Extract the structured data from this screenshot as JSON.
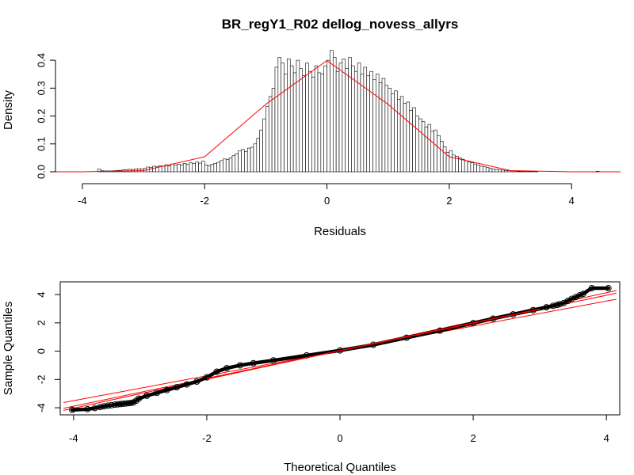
{
  "figure": {
    "title": "BR_regY1_R02 dellog_novess_allyrs"
  },
  "chart_data": [
    {
      "type": "bar",
      "subtype": "histogram-with-density-curve",
      "xlabel": "Residuals",
      "ylabel": "Density",
      "xlim": [
        -4.4,
        4.8
      ],
      "ylim": [
        0,
        0.44
      ],
      "x_ticks": [
        -4,
        -2,
        0,
        2,
        4
      ],
      "y_ticks": [
        0.0,
        0.1,
        0.2,
        0.3,
        0.4
      ],
      "y_tick_labels": [
        "0.0",
        "0.1",
        "0.2",
        "0.3",
        "0.4"
      ],
      "bin_width": 0.05,
      "bar_color": "#ffffff",
      "bar_edge_color": "#000000",
      "curve_color": "#ff0000",
      "curve": {
        "x": [
          -4.5,
          -4.0,
          -3.0,
          -2.0,
          -1.0,
          0.0,
          1.0,
          2.0,
          3.0,
          4.0,
          4.8
        ],
        "y": [
          0.0,
          0.0001,
          0.0044,
          0.054,
          0.242,
          0.399,
          0.242,
          0.054,
          0.0044,
          0.0001,
          0.0
        ]
      },
      "bins": [
        [
          -3.75,
          0.01
        ],
        [
          -3.7,
          0.004
        ],
        [
          -3.65,
          0.003
        ],
        [
          -3.6,
          0.003
        ],
        [
          -3.55,
          0.003
        ],
        [
          -3.5,
          0.004
        ],
        [
          -3.45,
          0.005
        ],
        [
          -3.4,
          0.005
        ],
        [
          -3.35,
          0.007
        ],
        [
          -3.3,
          0.008
        ],
        [
          -3.25,
          0.009
        ],
        [
          -3.2,
          0.008
        ],
        [
          -3.15,
          0.01
        ],
        [
          -3.1,
          0.011
        ],
        [
          -3.05,
          0.01
        ],
        [
          -3.0,
          0.012
        ],
        [
          -2.95,
          0.017
        ],
        [
          -2.9,
          0.015
        ],
        [
          -2.85,
          0.02
        ],
        [
          -2.8,
          0.018
        ],
        [
          -2.75,
          0.022
        ],
        [
          -2.7,
          0.02
        ],
        [
          -2.65,
          0.025
        ],
        [
          -2.6,
          0.021
        ],
        [
          -2.55,
          0.028
        ],
        [
          -2.5,
          0.024
        ],
        [
          -2.45,
          0.027
        ],
        [
          -2.4,
          0.025
        ],
        [
          -2.35,
          0.03
        ],
        [
          -2.3,
          0.027
        ],
        [
          -2.25,
          0.032
        ],
        [
          -2.2,
          0.03
        ],
        [
          -2.15,
          0.035
        ],
        [
          -2.1,
          0.031
        ],
        [
          -2.05,
          0.038
        ],
        [
          -2.0,
          0.025
        ],
        [
          -1.95,
          0.022
        ],
        [
          -1.9,
          0.027
        ],
        [
          -1.85,
          0.03
        ],
        [
          -1.8,
          0.034
        ],
        [
          -1.75,
          0.04
        ],
        [
          -1.7,
          0.046
        ],
        [
          -1.65,
          0.044
        ],
        [
          -1.6,
          0.05
        ],
        [
          -1.55,
          0.058
        ],
        [
          -1.5,
          0.065
        ],
        [
          -1.45,
          0.075
        ],
        [
          -1.4,
          0.08
        ],
        [
          -1.35,
          0.072
        ],
        [
          -1.3,
          0.085
        ],
        [
          -1.25,
          0.088
        ],
        [
          -1.2,
          0.1
        ],
        [
          -1.15,
          0.12
        ],
        [
          -1.1,
          0.15
        ],
        [
          -1.05,
          0.19
        ],
        [
          -1.0,
          0.235
        ],
        [
          -0.95,
          0.27
        ],
        [
          -0.9,
          0.3
        ],
        [
          -0.85,
          0.375
        ],
        [
          -0.8,
          0.41
        ],
        [
          -0.75,
          0.39
        ],
        [
          -0.7,
          0.35
        ],
        [
          -0.65,
          0.405
        ],
        [
          -0.6,
          0.38
        ],
        [
          -0.55,
          0.355
        ],
        [
          -0.5,
          0.4
        ],
        [
          -0.45,
          0.37
        ],
        [
          -0.4,
          0.345
        ],
        [
          -0.35,
          0.39
        ],
        [
          -0.3,
          0.36
        ],
        [
          -0.25,
          0.34
        ],
        [
          -0.2,
          0.38
        ],
        [
          -0.15,
          0.355
        ],
        [
          -0.1,
          0.35
        ],
        [
          -0.05,
          0.38
        ],
        [
          0.0,
          0.4
        ],
        [
          0.05,
          0.435
        ],
        [
          0.1,
          0.41
        ],
        [
          0.15,
          0.36
        ],
        [
          0.2,
          0.39
        ],
        [
          0.25,
          0.405
        ],
        [
          0.3,
          0.37
        ],
        [
          0.35,
          0.41
        ],
        [
          0.4,
          0.38
        ],
        [
          0.45,
          0.36
        ],
        [
          0.5,
          0.39
        ],
        [
          0.55,
          0.35
        ],
        [
          0.6,
          0.375
        ],
        [
          0.65,
          0.345
        ],
        [
          0.7,
          0.36
        ],
        [
          0.75,
          0.33
        ],
        [
          0.8,
          0.35
        ],
        [
          0.85,
          0.32
        ],
        [
          0.9,
          0.335
        ],
        [
          0.95,
          0.31
        ],
        [
          1.0,
          0.3
        ],
        [
          1.05,
          0.28
        ],
        [
          1.1,
          0.29
        ],
        [
          1.15,
          0.26
        ],
        [
          1.2,
          0.27
        ],
        [
          1.25,
          0.245
        ],
        [
          1.3,
          0.25
        ],
        [
          1.35,
          0.22
        ],
        [
          1.4,
          0.23
        ],
        [
          1.45,
          0.2
        ],
        [
          1.5,
          0.19
        ],
        [
          1.55,
          0.18
        ],
        [
          1.6,
          0.16
        ],
        [
          1.65,
          0.17
        ],
        [
          1.7,
          0.145
        ],
        [
          1.75,
          0.15
        ],
        [
          1.8,
          0.13
        ],
        [
          1.85,
          0.11
        ],
        [
          1.9,
          0.09
        ],
        [
          1.95,
          0.07
        ],
        [
          2.0,
          0.075
        ],
        [
          2.05,
          0.06
        ],
        [
          2.1,
          0.055
        ],
        [
          2.15,
          0.05
        ],
        [
          2.2,
          0.045
        ],
        [
          2.25,
          0.04
        ],
        [
          2.3,
          0.035
        ],
        [
          2.35,
          0.032
        ],
        [
          2.4,
          0.028
        ],
        [
          2.45,
          0.024
        ],
        [
          2.5,
          0.02
        ],
        [
          2.55,
          0.018
        ],
        [
          2.6,
          0.015
        ],
        [
          2.65,
          0.012
        ],
        [
          2.7,
          0.01
        ],
        [
          2.75,
          0.009
        ],
        [
          2.8,
          0.007
        ],
        [
          2.85,
          0.006
        ],
        [
          2.9,
          0.005
        ],
        [
          2.95,
          0.004
        ],
        [
          3.0,
          0.003
        ],
        [
          3.05,
          0.003
        ],
        [
          3.1,
          0.002
        ],
        [
          3.15,
          0.002
        ],
        [
          3.2,
          0.002
        ],
        [
          3.25,
          0.001
        ],
        [
          3.3,
          0.001
        ],
        [
          3.35,
          0.001
        ],
        [
          3.4,
          0.001
        ],
        [
          4.4,
          0.002
        ]
      ]
    },
    {
      "type": "scatter",
      "subtype": "normal-qq-plot",
      "xlabel": "Theoretical Quantiles",
      "ylabel": "Sample Quantiles",
      "xlim": [
        -4.2,
        4.2
      ],
      "ylim": [
        -4.5,
        4.9
      ],
      "x_ticks": [
        -4,
        -2,
        0,
        2,
        4
      ],
      "y_ticks": [
        -4,
        -2,
        0,
        2,
        4
      ],
      "point_color": "#000000",
      "line_color": "#ff0000",
      "reference_lines": [
        {
          "slope": 0.88,
          "intercept": 0.02
        },
        {
          "slope": 0.98,
          "intercept": 0.03
        },
        {
          "slope": 1.02,
          "intercept": 0.05
        }
      ],
      "points": {
        "x": [
          -4.02,
          -3.79,
          -3.68,
          -3.6,
          -3.54,
          -3.48,
          -3.43,
          -3.38,
          -3.34,
          -3.3,
          -3.26,
          -3.22,
          -3.18,
          -3.14,
          -3.1,
          -3.06,
          -3.02,
          -2.9,
          -2.75,
          -2.6,
          -2.45,
          -2.3,
          -2.15,
          -2.0,
          -1.85,
          -1.7,
          -1.5,
          -1.3,
          -1.0,
          -0.5,
          0.0,
          0.5,
          1.0,
          1.5,
          2.0,
          2.3,
          2.6,
          2.9,
          3.1,
          3.2,
          3.26,
          3.3,
          3.36,
          3.42,
          3.48,
          3.54,
          3.6,
          3.65,
          3.78,
          4.03
        ],
        "y": [
          -4.15,
          -4.1,
          -4.02,
          -3.95,
          -3.9,
          -3.85,
          -3.82,
          -3.78,
          -3.76,
          -3.74,
          -3.72,
          -3.7,
          -3.68,
          -3.66,
          -3.62,
          -3.5,
          -3.35,
          -3.15,
          -2.95,
          -2.75,
          -2.55,
          -2.35,
          -2.15,
          -1.85,
          -1.45,
          -1.2,
          -1.0,
          -0.85,
          -0.65,
          -0.3,
          0.05,
          0.45,
          0.95,
          1.45,
          1.98,
          2.3,
          2.6,
          2.9,
          3.1,
          3.2,
          3.27,
          3.32,
          3.4,
          3.55,
          3.7,
          3.82,
          3.95,
          4.05,
          4.45,
          4.45
        ]
      }
    }
  ]
}
